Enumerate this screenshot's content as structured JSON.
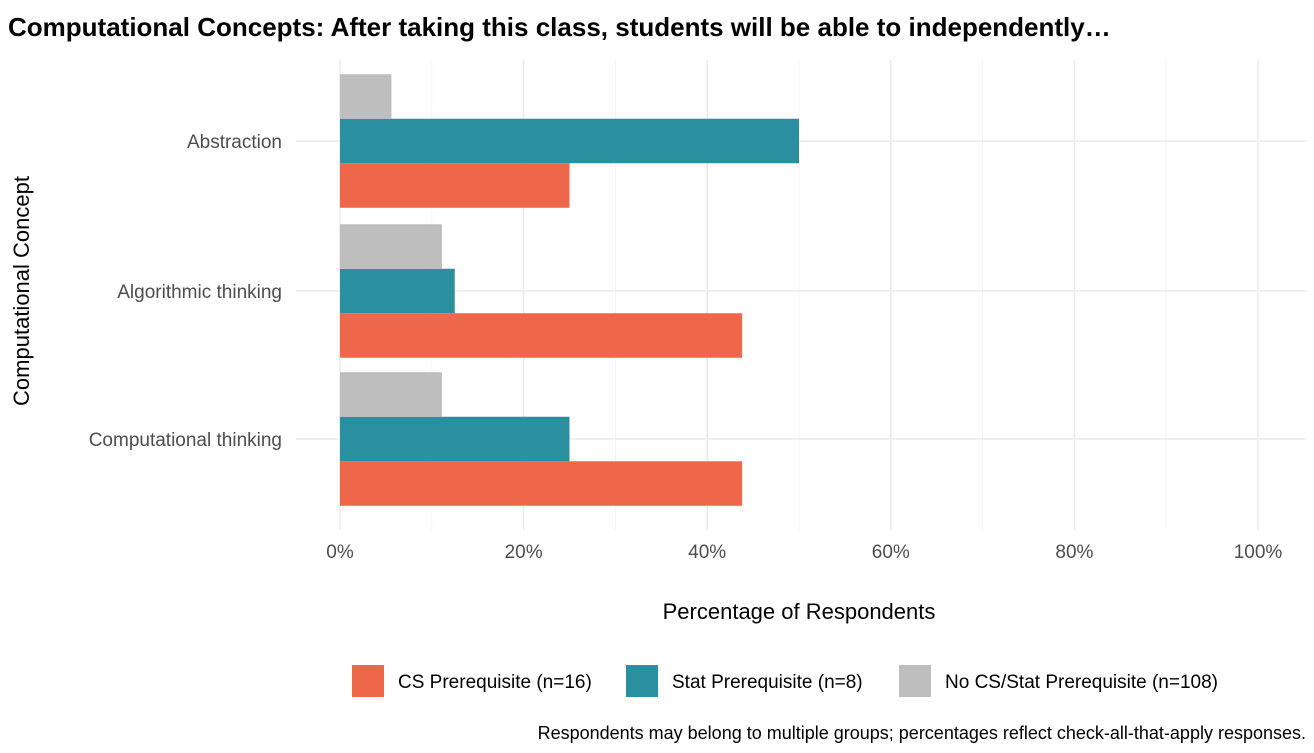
{
  "chart_data": {
    "type": "bar",
    "orientation": "horizontal",
    "title": "Computational Concepts: After taking this class, students will be able to independently…",
    "xlabel": "Percentage of Respondents",
    "ylabel": "Computational Concept",
    "xlim": [
      0,
      100
    ],
    "x_ticks": [
      "0%",
      "20%",
      "40%",
      "60%",
      "80%",
      "100%"
    ],
    "x_tick_values": [
      0,
      20,
      40,
      60,
      80,
      100
    ],
    "categories": [
      "Abstraction",
      "Algorithmic thinking",
      "Computational thinking"
    ],
    "series": [
      {
        "name": "CS Prerequisite (n=16)",
        "color": "#EE674A",
        "values": [
          25,
          43.8,
          43.8
        ]
      },
      {
        "name": "Stat Prerequisite (n=8)",
        "color": "#2A8F9F",
        "values": [
          50,
          12.5,
          25
        ]
      },
      {
        "name": "No CS/Stat Prerequisite (n=108)",
        "color": "#BEBEBE",
        "values": [
          5.6,
          11.1,
          11.1
        ]
      }
    ],
    "grid": true,
    "legend_position": "bottom",
    "caption": "Respondents may belong to multiple groups; percentages reflect check-all-that-apply responses."
  }
}
